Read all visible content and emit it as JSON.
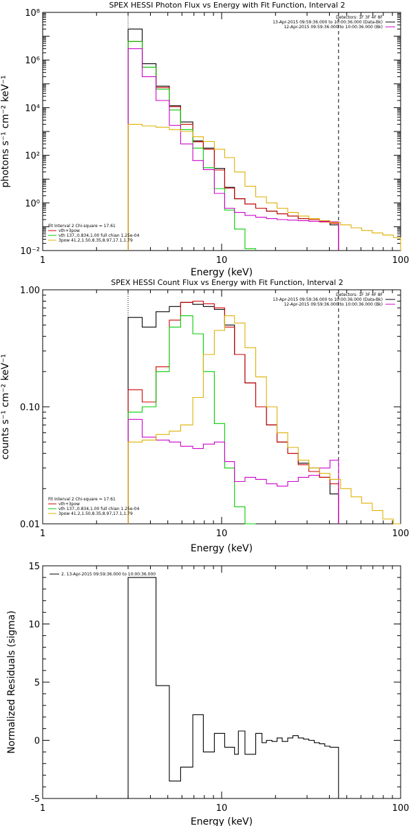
{
  "chart_data": [
    {
      "type": "line",
      "title": "SPEX HESSI Photon Flux vs Energy with Fit Function, Interval 2",
      "xlabel": "Energy (keV)",
      "ylabel": "photons s⁻¹ cm⁻² keV⁻¹",
      "xscale": "log",
      "yscale": "log",
      "xlim": [
        1,
        100
      ],
      "ylim": [
        0.01,
        100000000
      ],
      "xticks": [
        {
          "v": 1,
          "label": "1"
        },
        {
          "v": 10,
          "label": "10"
        },
        {
          "v": 100,
          "label": "100"
        }
      ],
      "yticks": [
        {
          "v": 0.01,
          "label": "10⁻²"
        },
        {
          "v": 1,
          "label": "10⁰"
        },
        {
          "v": 100,
          "label": "10²"
        },
        {
          "v": 10000,
          "label": "10⁴"
        },
        {
          "v": 1000000,
          "label": "10⁶"
        },
        {
          "v": 100000000,
          "label": "10⁸"
        }
      ],
      "vlines": [
        {
          "x": 3.0,
          "style": "dotted"
        },
        {
          "x": 45,
          "style": "dashed"
        }
      ],
      "legend_top": [
        {
          "text": "Detectors: 1F 3F 4F 8F",
          "color": ""
        },
        {
          "text": "13-Apr-2015 09:59:36.000 to 10:00:36.000 (Data-Bk)",
          "color": "#000000"
        },
        {
          "text": "12-Apr-2015 09:59:36.000 to 10:00:36.000 (Bk)",
          "color": "#cc00cc"
        }
      ],
      "legend_bottom": [
        {
          "text": "Fit Interval 2   Chi-square = 17.61",
          "color": ""
        },
        {
          "text": "vth+3pow",
          "color": "#cc0000"
        },
        {
          "text": "vth 137.,0.834,1.00  full chian 1.25e-04",
          "color": "#00cc00"
        },
        {
          "text": "3pow 41.2,1.50,8.35,8.97,17.1,1.79",
          "color": "#ddb000"
        }
      ],
      "series": [
        {
          "name": "",
          "color": "#000000",
          "edges": [
            3.0,
            3.6,
            4.3,
            5.1,
            5.9,
            6.9,
            7.9,
            9.1,
            10.4,
            11.8,
            13.5,
            15.5,
            17.8,
            20.4,
            23.4,
            26.8,
            30.7,
            35.2,
            40.3,
            45
          ],
          "values": [
            20000000.0,
            700000.0,
            80000.0,
            12000.0,
            2500,
            400,
            200,
            28,
            4.5,
            1.5,
            0.9,
            0.6,
            0.45,
            0.35,
            0.28,
            0.22,
            0.2,
            0.17,
            0.12
          ]
        },
        {
          "name": "",
          "color": "#cc0000",
          "edges": [
            3.0,
            3.6,
            4.3,
            5.1,
            5.9,
            6.9,
            7.9,
            9.1,
            10.4,
            11.8,
            13.5,
            15.5,
            17.8,
            20.4,
            23.4,
            26.8,
            30.7,
            35.2,
            40.3,
            45
          ],
          "values": [
            6000000.0,
            500000.0,
            70000.0,
            11000.0,
            2000,
            370,
            180,
            24,
            4.2,
            1.5,
            0.9,
            0.6,
            0.45,
            0.35,
            0.28,
            0.22,
            0.2,
            0.16,
            0.14
          ]
        },
        {
          "name": "",
          "color": "#00cc00",
          "edges": [
            3.0,
            3.6,
            4.3,
            5.1,
            5.9,
            6.9,
            7.9,
            9.1,
            10.4,
            11.8,
            13.5,
            15.5
          ],
          "values": [
            6000000.0,
            500000.0,
            60000.0,
            8000,
            1200,
            200,
            30,
            4,
            0.5,
            0.08,
            0.012
          ]
        },
        {
          "name": "",
          "color": "#cc00cc",
          "edges": [
            3.0,
            3.6,
            4.3,
            5.1,
            5.9,
            6.9,
            7.9,
            9.1,
            10.4,
            11.8,
            13.5,
            15.5,
            17.8,
            20.4,
            23.4,
            26.8,
            30.7,
            35.2,
            40.3,
            45
          ],
          "values": [
            3000000.0,
            200000.0,
            20000.0,
            1800,
            300,
            60,
            25,
            2.5,
            0.6,
            0.4,
            0.3,
            0.25,
            0.22,
            0.2,
            0.19,
            0.18,
            0.17,
            0.17,
            0.16
          ]
        },
        {
          "name": "",
          "color": "#ddb000",
          "edges": [
            3.0,
            3.6,
            4.3,
            5.1,
            5.9,
            6.9,
            7.9,
            9.1,
            10.4,
            11.8,
            13.5,
            15.5,
            17.8,
            20.4,
            23.4,
            26.8,
            30.7,
            35.2,
            40.3,
            46.2,
            52.9,
            60.6,
            69.4,
            79.5,
            91.1,
            100
          ],
          "values": [
            2000,
            1700,
            1500,
            1200,
            1000,
            600,
            380,
            180,
            80,
            20,
            5,
            1.8,
            1.0,
            0.6,
            0.4,
            0.28,
            0.22,
            0.18,
            0.15,
            0.12,
            0.09,
            0.07,
            0.055,
            0.045,
            0.035
          ]
        }
      ]
    },
    {
      "type": "line",
      "title": "SPEX HESSI Count Flux vs Energy with Fit Function, Interval 2",
      "xlabel": "Energy (keV)",
      "ylabel": "counts s⁻¹ cm⁻² keV⁻¹",
      "xscale": "log",
      "yscale": "log",
      "xlim": [
        1,
        100
      ],
      "ylim": [
        0.01,
        1.0
      ],
      "xticks": [
        {
          "v": 1,
          "label": "1"
        },
        {
          "v": 10,
          "label": "10"
        },
        {
          "v": 100,
          "label": "100"
        }
      ],
      "yticks": [
        {
          "v": 0.01,
          "label": "0.01"
        },
        {
          "v": 0.1,
          "label": "0.10"
        },
        {
          "v": 1.0,
          "label": "1.00"
        }
      ],
      "vlines": [
        {
          "x": 3.0,
          "style": "dotted"
        },
        {
          "x": 45,
          "style": "dashed"
        }
      ],
      "legend_top": [
        {
          "text": "Detectors: 1F 3F 4F 8F",
          "color": ""
        },
        {
          "text": "13-Apr-2015 09:59:36.000 to 10:00:36.000 (Data-Bk)",
          "color": "#000000"
        },
        {
          "text": "12-Apr-2015 09:59:36.000 to 10:00:36.000 (Bk)",
          "color": "#cc00cc"
        }
      ],
      "legend_bottom": [
        {
          "text": "Fit Interval 2   Chi-square = 17.61",
          "color": ""
        },
        {
          "text": "vth+3pow",
          "color": "#cc0000"
        },
        {
          "text": "vth 137.,0.834,1.00  full chian 1.25e-04",
          "color": "#00cc00"
        },
        {
          "text": "3pow 41.2,1.50,8.35,8.97,17.1,1.79",
          "color": "#ddb000"
        }
      ],
      "series": [
        {
          "name": "",
          "color": "#000000",
          "edges": [
            3.0,
            3.6,
            4.3,
            5.1,
            5.9,
            6.9,
            7.9,
            9.1,
            10.4,
            11.8,
            13.5,
            15.5,
            17.8,
            20.4,
            23.4,
            26.8,
            30.7,
            35.2,
            40.3,
            45
          ],
          "values": [
            0.58,
            0.48,
            0.65,
            0.72,
            0.78,
            0.75,
            0.72,
            0.68,
            0.5,
            0.28,
            0.16,
            0.1,
            0.07,
            0.05,
            0.04,
            0.033,
            0.03,
            0.025,
            0.018
          ]
        },
        {
          "name": "",
          "color": "#cc0000",
          "edges": [
            3.0,
            3.6,
            4.3,
            5.1,
            5.9,
            6.9,
            7.9,
            9.1,
            10.4,
            11.8,
            13.5,
            15.5,
            17.8,
            20.4,
            23.4,
            26.8,
            30.7,
            35.2,
            40.3,
            45
          ],
          "values": [
            0.14,
            0.11,
            0.22,
            0.55,
            0.78,
            0.8,
            0.76,
            0.7,
            0.48,
            0.28,
            0.16,
            0.1,
            0.07,
            0.05,
            0.04,
            0.032,
            0.028,
            0.025,
            0.022
          ]
        },
        {
          "name": "",
          "color": "#00cc00",
          "edges": [
            3.0,
            3.6,
            4.3,
            5.1,
            5.9,
            6.9,
            7.9,
            9.1,
            10.4,
            11.8,
            13.5,
            15.5
          ],
          "values": [
            0.09,
            0.1,
            0.2,
            0.48,
            0.6,
            0.42,
            0.2,
            0.072,
            0.03,
            0.014,
            0.01
          ]
        },
        {
          "name": "",
          "color": "#cc00cc",
          "edges": [
            3.0,
            3.6,
            4.3,
            5.1,
            5.9,
            6.9,
            7.9,
            9.1,
            10.4,
            11.8,
            13.5,
            15.5,
            17.8,
            20.4,
            23.4,
            26.8,
            30.7,
            35.2,
            40.3,
            45
          ],
          "values": [
            0.078,
            0.055,
            0.052,
            0.05,
            0.046,
            0.044,
            0.048,
            0.05,
            0.034,
            0.023,
            0.025,
            0.024,
            0.022,
            0.021,
            0.023,
            0.025,
            0.026,
            0.03,
            0.035
          ]
        },
        {
          "name": "",
          "color": "#ddb000",
          "edges": [
            3.0,
            3.6,
            4.3,
            5.1,
            5.9,
            6.9,
            7.9,
            9.1,
            10.4,
            11.8,
            13.5,
            15.5,
            17.8,
            20.4,
            23.4,
            26.8,
            30.7,
            35.2,
            40.3,
            46.2,
            52.9,
            60.6,
            69.4,
            79.5,
            91.1,
            100
          ],
          "values": [
            0.05,
            0.052,
            0.058,
            0.062,
            0.07,
            0.12,
            0.28,
            0.45,
            0.6,
            0.52,
            0.32,
            0.18,
            0.1,
            0.06,
            0.045,
            0.035,
            0.03,
            0.027,
            0.024,
            0.02,
            0.017,
            0.015,
            0.013,
            0.011,
            0.01
          ]
        }
      ]
    },
    {
      "type": "line",
      "title": "",
      "xlabel": "Energy (keV)",
      "ylabel": "Normalized Residuals (sigma)",
      "xscale": "log",
      "yscale": "linear",
      "xlim": [
        1,
        100
      ],
      "ylim": [
        -5,
        15
      ],
      "xticks": [
        {
          "v": 1,
          "label": "1"
        },
        {
          "v": 10,
          "label": "10"
        },
        {
          "v": 100,
          "label": "100"
        }
      ],
      "yticks": [
        {
          "v": -5,
          "label": "-5"
        },
        {
          "v": 0,
          "label": "0"
        },
        {
          "v": 5,
          "label": "5"
        },
        {
          "v": 10,
          "label": "10"
        },
        {
          "v": 15,
          "label": "15"
        }
      ],
      "vlines": [],
      "legend_top": [],
      "legend_bottom": [],
      "legend_left": [
        {
          "text": "2. 13-Apr-2015 09:59:36.000 to 10:00:36.000",
          "color": "#000000"
        }
      ],
      "series": [
        {
          "name": "",
          "color": "#000000",
          "edges": [
            3.0,
            3.6,
            4.3,
            5.1,
            5.9,
            6.9,
            7.9,
            9.1,
            10.4,
            11.8,
            12.4,
            13.5,
            15.5,
            16.8,
            17.8,
            19.1,
            20.4,
            21.8,
            23.4,
            25.0,
            26.8,
            28.7,
            30.7,
            32.9,
            35.2,
            37.7,
            40.3,
            45
          ],
          "values": [
            14,
            14,
            4.7,
            -3.5,
            -2.3,
            2.2,
            -1.0,
            0.6,
            -0.6,
            -1.2,
            0.8,
            -1.2,
            0.6,
            -0.2,
            0.0,
            -0.1,
            0.2,
            -0.1,
            0.2,
            0.4,
            0.2,
            0.1,
            0.0,
            -0.2,
            -0.3,
            -0.5,
            -0.6
          ]
        }
      ]
    }
  ]
}
